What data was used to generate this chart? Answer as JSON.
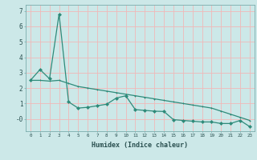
{
  "xlabel": "Humidex (Indice chaleur)",
  "x_values": [
    0,
    1,
    2,
    3,
    4,
    5,
    6,
    7,
    8,
    9,
    10,
    11,
    12,
    13,
    14,
    15,
    16,
    17,
    18,
    19,
    20,
    21,
    22,
    23
  ],
  "line1": [
    2.5,
    3.2,
    2.6,
    6.8,
    1.1,
    0.7,
    0.75,
    0.85,
    0.95,
    1.35,
    1.5,
    0.6,
    0.55,
    0.5,
    0.48,
    -0.05,
    -0.1,
    -0.15,
    -0.2,
    -0.2,
    -0.3,
    -0.3,
    -0.1,
    -0.5
  ],
  "line2": [
    2.5,
    2.5,
    2.45,
    2.5,
    2.3,
    2.1,
    2.0,
    1.9,
    1.8,
    1.7,
    1.6,
    1.5,
    1.4,
    1.3,
    1.2,
    1.1,
    1.0,
    0.9,
    0.8,
    0.7,
    0.5,
    0.3,
    0.1,
    -0.1
  ],
  "line_color": "#2e8b7a",
  "bg_color": "#cce8e8",
  "grid_color": "#f0b8b8",
  "ylim_min": -0.8,
  "ylim_max": 7.4,
  "yticks": [
    0,
    1,
    2,
    3,
    4,
    5,
    6,
    7
  ],
  "ytick_labels": [
    "-0",
    "1",
    "2",
    "3",
    "4",
    "5",
    "6",
    "7"
  ]
}
